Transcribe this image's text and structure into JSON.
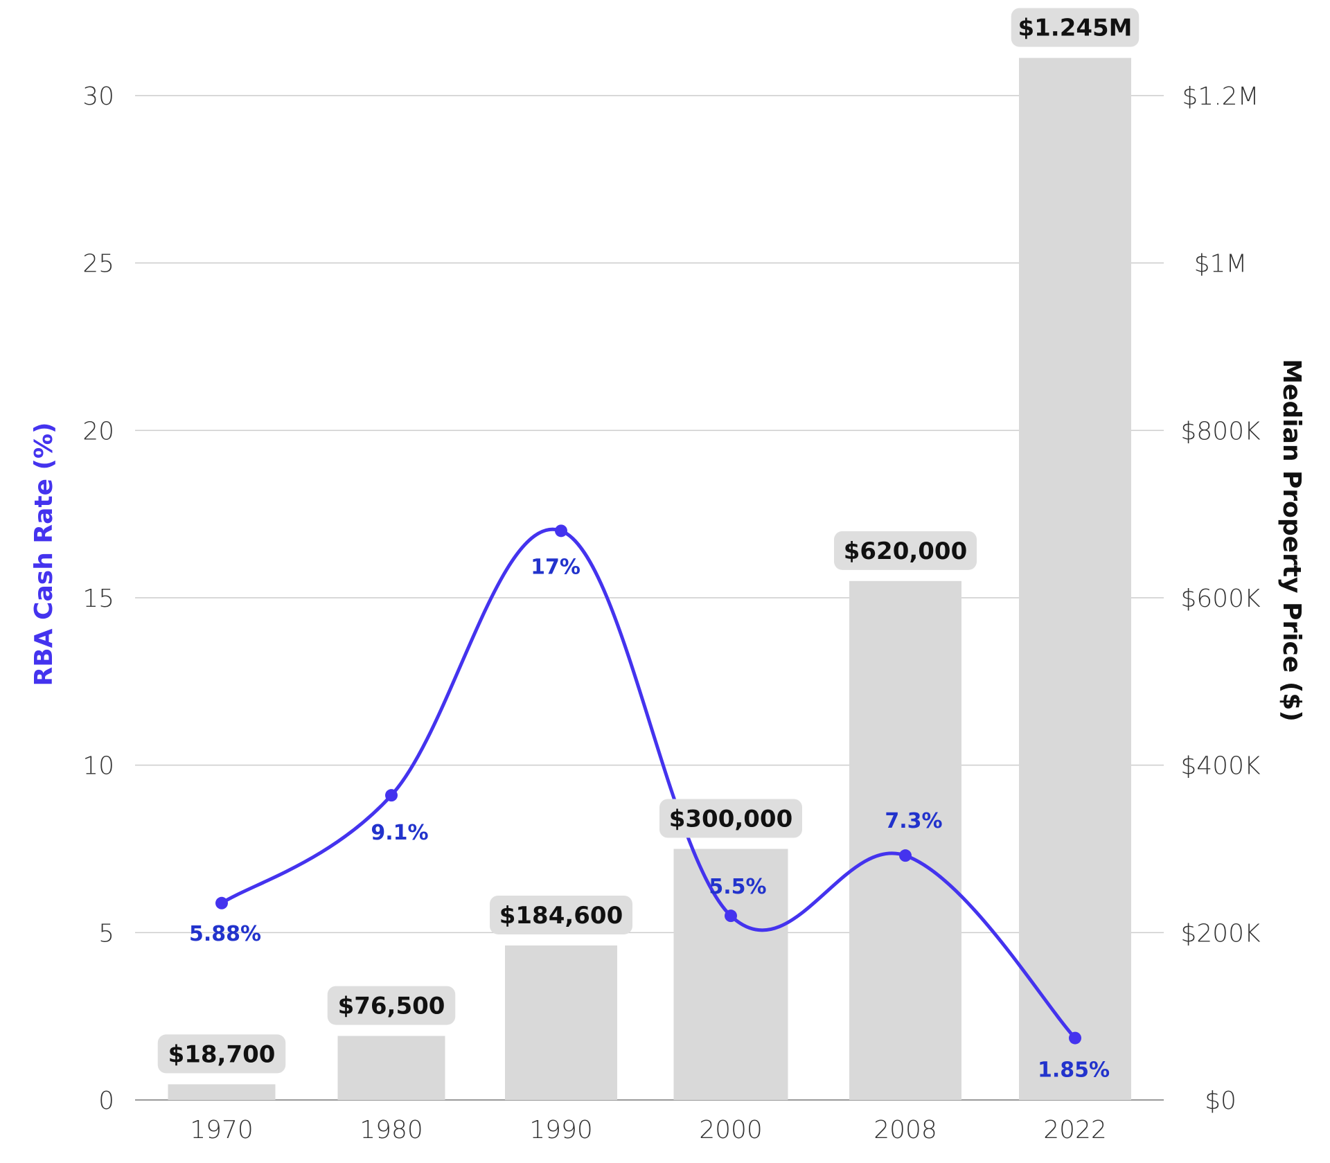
{
  "colors": {
    "bar": "#d9d9d9",
    "line": "#4433ee",
    "rate_label": "#2233cc",
    "grid": "#cccccc",
    "label_box": "#dedede",
    "left_title": "#4433ee",
    "right_title": "#111111"
  },
  "chart_data": {
    "type": "bar",
    "categories": [
      "1970",
      "1980",
      "1990",
      "2000",
      "2008",
      "2022"
    ],
    "left_axis": {
      "title": "RBA Cash Rate (%)",
      "ylim": [
        0,
        30
      ],
      "ticks": [
        0,
        5,
        10,
        15,
        20,
        25,
        30
      ],
      "tick_labels": [
        "0",
        "5",
        "10",
        "15",
        "20",
        "25",
        "30"
      ]
    },
    "right_axis": {
      "title": "Median Property Price ($)",
      "ylim": [
        0,
        1200000
      ],
      "ticks": [
        0,
        200000,
        400000,
        600000,
        800000,
        1000000,
        1200000
      ],
      "tick_labels": [
        "$0",
        "$200K",
        "$400K",
        "$600K",
        "$800K",
        "$1M",
        "$1.2M"
      ]
    },
    "grid": true,
    "series": [
      {
        "type": "bar",
        "axis": "right",
        "values": [
          18700,
          76500,
          184600,
          300000,
          620000,
          1245000
        ],
        "labels": [
          "$18,700",
          "$76,500",
          "$184,600",
          "$300,000",
          "$620,000",
          "$1.245M"
        ]
      },
      {
        "type": "line",
        "axis": "left",
        "smooth": true,
        "values": [
          5.88,
          9.1,
          17,
          5.5,
          7.3,
          1.85
        ],
        "labels": [
          "5.88%",
          "9.1%",
          "17%",
          "5.5%",
          "7.3%",
          "1.85%"
        ]
      }
    ]
  }
}
